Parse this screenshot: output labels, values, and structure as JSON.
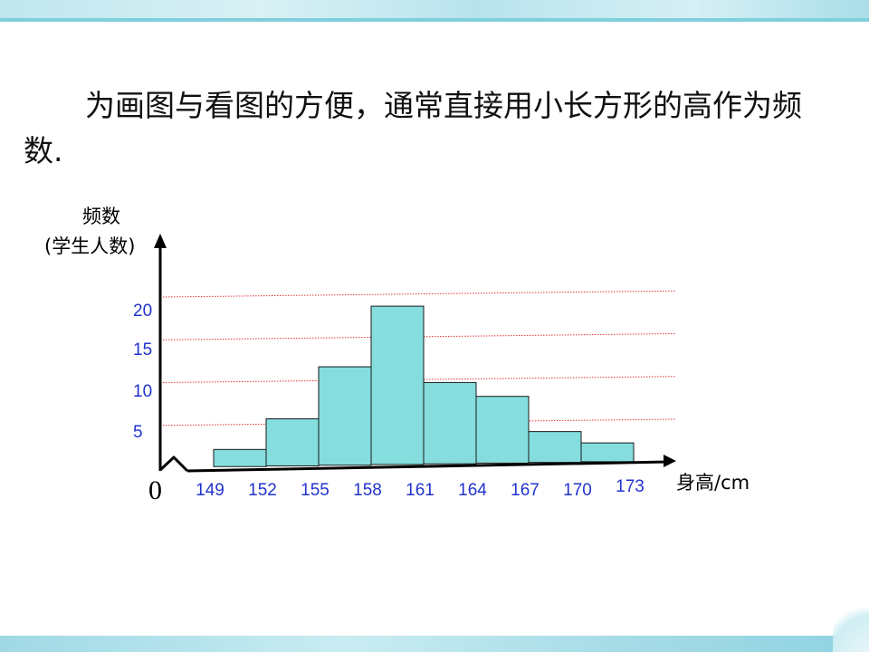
{
  "intro_text": "为画图与看图的方便，通常直接用小长方形的高作为频数.",
  "chart_data": {
    "type": "bar",
    "title": "",
    "ylabel_line1": "频数",
    "ylabel_line2": "(学生人数)",
    "xlabel": "身高/cm",
    "origin_label": "0",
    "x_ticks": [
      "149",
      "152",
      "155",
      "158",
      "161",
      "164",
      "167",
      "170",
      "173"
    ],
    "y_ticks": [
      "5",
      "10",
      "15",
      "20"
    ],
    "bins": [
      {
        "from": 149,
        "to": 152,
        "value": 2
      },
      {
        "from": 152,
        "to": 155,
        "value": 5.5
      },
      {
        "from": 155,
        "to": 158,
        "value": 11.5
      },
      {
        "from": 158,
        "to": 161,
        "value": 18.5
      },
      {
        "from": 161,
        "to": 164,
        "value": 9.5
      },
      {
        "from": 164,
        "to": 167,
        "value": 7.8
      },
      {
        "from": 167,
        "to": 170,
        "value": 3.6
      },
      {
        "from": 170,
        "to": 173,
        "value": 2.2
      }
    ],
    "ylim": [
      0,
      20
    ],
    "gridlines": [
      5,
      10,
      15,
      20
    ],
    "colors": {
      "bar_fill": "#85ddde",
      "bar_stroke": "#1a1a1a",
      "grid": "#e0353b",
      "tick_labels": "#2233cc",
      "axis": "#000000"
    }
  }
}
